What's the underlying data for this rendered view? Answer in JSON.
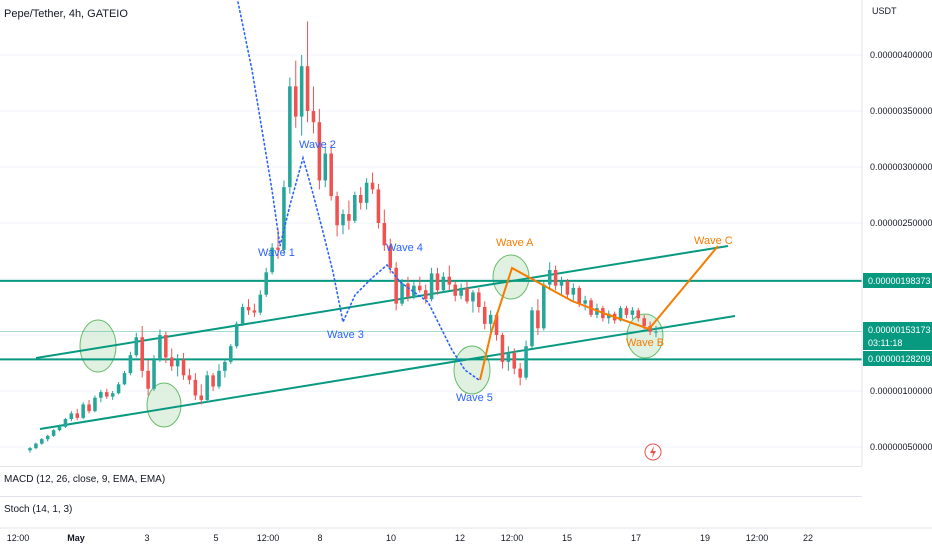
{
  "header": {
    "title": "Pepe/Tether, 4h, GATEIO"
  },
  "indicators": {
    "macd": "MACD (12, 26, close, 9, EMA, EMA)",
    "stoch": "Stoch (14, 1, 3)"
  },
  "price_axis": {
    "currency": "USDT",
    "tag_resistance": "0.00000198373",
    "tag_price": "0.00000153173",
    "tag_countdown": "03:11:18",
    "tag_support": "0.00000128209"
  },
  "colors": {
    "up": "#26a69a",
    "down": "#ef5350",
    "level": "#089981",
    "elliott": "#2962ff",
    "abc": "#f57c00",
    "circle_fill": "#c8e6c9",
    "circle_stroke": "#66bb6a"
  },
  "wave_labels": {
    "w1": "Wave 1",
    "w2": "Wave 2",
    "w3": "Wave 3",
    "w4": "Wave 4",
    "w5": "Wave 5",
    "wa": "Wave A",
    "wb": "Wave B",
    "wc": "Wave C"
  },
  "chart_data": {
    "type": "candlestick",
    "title": "Pepe/Tether, 4h, GATEIO",
    "y_unit": "USDT",
    "ylim": [
      1.4e-07,
      4.35e-06
    ],
    "y_ticks": [
      "0.00000400000",
      "0.00000350000",
      "0.00000300000",
      "0.00000250000",
      "0.00000200000",
      "0.00000150000",
      "0.00000100000",
      "0.00000050000"
    ],
    "x_ticks": [
      "12:00",
      "May",
      "3",
      "5",
      "12:00",
      "8",
      "10",
      "12",
      "12:00",
      "15",
      "17",
      "19",
      "12:00",
      "22"
    ],
    "horizontal_levels": [
      1.98373e-06,
      1.28209e-06
    ],
    "last_price": 1.53173e-06,
    "candles": [
      [
        4.7e-07,
        5e-07,
        4.5e-07,
        4.9e-07
      ],
      [
        4.9e-07,
        5.4e-07,
        4.8e-07,
        5.3e-07
      ],
      [
        5.3e-07,
        5.8e-07,
        5.2e-07,
        5.7e-07
      ],
      [
        5.7e-07,
        6.1e-07,
        5.5e-07,
        6e-07
      ],
      [
        6e-07,
        6.6e-07,
        5.9e-07,
        6.5e-07
      ],
      [
        6.5e-07,
        7e-07,
        6.4e-07,
        6.8e-07
      ],
      [
        6.8e-07,
        7.6e-07,
        6.7e-07,
        7.5e-07
      ],
      [
        7.5e-07,
        8.2e-07,
        7.3e-07,
        8e-07
      ],
      [
        8e-07,
        8.4e-07,
        7.4e-07,
        7.6e-07
      ],
      [
        7.6e-07,
        9e-07,
        7.5e-07,
        8.8e-07
      ],
      [
        8.8e-07,
        9.2e-07,
        8e-07,
        8.2e-07
      ],
      [
        8.2e-07,
        9.6e-07,
        8.1e-07,
        9.4e-07
      ],
      [
        9.4e-07,
        1.01e-06,
        9e-07,
        9.9e-07
      ],
      [
        9.9e-07,
        1.02e-06,
        9.3e-07,
        9.5e-07
      ],
      [
        9.5e-07,
        1e-06,
        9.2e-07,
        9.8e-07
      ],
      [
        9.8e-07,
        1.08e-06,
        9.7e-07,
        1.06e-06
      ],
      [
        1.06e-06,
        1.18e-06,
        1.05e-06,
        1.16e-06
      ],
      [
        1.16e-06,
        1.35e-06,
        1.14e-06,
        1.32e-06
      ],
      [
        1.32e-06,
        1.52e-06,
        1.3e-06,
        1.48e-06
      ],
      [
        1.48e-06,
        1.58e-06,
        1.12e-06,
        1.18e-06
      ],
      [
        1.18e-06,
        1.28e-06,
        9.6e-07,
        1.02e-06
      ],
      [
        1.02e-06,
        1.32e-06,
        1e-06,
        1.28e-06
      ],
      [
        1.28e-06,
        1.55e-06,
        1.26e-06,
        1.5e-06
      ],
      [
        1.5e-06,
        1.53e-06,
        1.25e-06,
        1.3e-06
      ],
      [
        1.3e-06,
        1.38e-06,
        1.18e-06,
        1.22e-06
      ],
      [
        1.22e-06,
        1.33e-06,
        1.13e-06,
        1.28e-06
      ],
      [
        1.28e-06,
        1.34e-06,
        1.1e-06,
        1.14e-06
      ],
      [
        1.14e-06,
        1.2e-06,
        1.06e-06,
        1.1e-06
      ],
      [
        1.1e-06,
        1.16e-06,
        9.2e-07,
        9.6e-07
      ],
      [
        9.6e-07,
        1.06e-06,
        8.8e-07,
        9.2e-07
      ],
      [
        9.2e-07,
        1.18e-06,
        9e-07,
        1.14e-06
      ],
      [
        1.14e-06,
        1.16e-06,
        1e-06,
        1.04e-06
      ],
      [
        1.04e-06,
        1.24e-06,
        1.02e-06,
        1.18e-06
      ],
      [
        1.18e-06,
        1.28e-06,
        1.12e-06,
        1.26e-06
      ],
      [
        1.26e-06,
        1.42e-06,
        1.24e-06,
        1.4e-06
      ],
      [
        1.4e-06,
        1.62e-06,
        1.38e-06,
        1.6e-06
      ],
      [
        1.6e-06,
        1.78e-06,
        1.58e-06,
        1.75e-06
      ],
      [
        1.75e-06,
        1.82e-06,
        1.68e-06,
        1.72e-06
      ],
      [
        1.72e-06,
        1.78e-06,
        1.66e-06,
        1.7e-06
      ],
      [
        1.7e-06,
        1.9e-06,
        1.68e-06,
        1.86e-06
      ],
      [
        1.86e-06,
        2.1e-06,
        1.84e-06,
        2.06e-06
      ],
      [
        2.06e-06,
        2.32e-06,
        2.04e-06,
        2.28e-06
      ],
      [
        2.28e-06,
        2.45e-06,
        2.18e-06,
        2.26e-06
      ],
      [
        2.26e-06,
        2.88e-06,
        2.22e-06,
        2.82e-06
      ],
      [
        2.82e-06,
        3.8e-06,
        2.76e-06,
        3.72e-06
      ],
      [
        3.72e-06,
        3.95e-06,
        3.35e-06,
        3.45e-06
      ],
      [
        3.45e-06,
        4e-06,
        3.28e-06,
        3.9e-06
      ],
      [
        3.9e-06,
        4.3e-06,
        3.4e-06,
        3.5e-06
      ],
      [
        3.5e-06,
        3.72e-06,
        3.3e-06,
        3.4e-06
      ],
      [
        3.4e-06,
        3.52e-06,
        2.8e-06,
        2.88e-06
      ],
      [
        2.88e-06,
        3.18e-06,
        2.82e-06,
        3.12e-06
      ],
      [
        3.12e-06,
        3.2e-06,
        2.7e-06,
        2.74e-06
      ],
      [
        2.74e-06,
        2.78e-06,
        2.38e-06,
        2.48e-06
      ],
      [
        2.48e-06,
        2.62e-06,
        2.4e-06,
        2.58e-06
      ],
      [
        2.58e-06,
        2.7e-06,
        2.44e-06,
        2.52e-06
      ],
      [
        2.52e-06,
        2.78e-06,
        2.5e-06,
        2.75e-06
      ],
      [
        2.75e-06,
        2.82e-06,
        2.62e-06,
        2.68e-06
      ],
      [
        2.68e-06,
        2.9e-06,
        2.62e-06,
        2.86e-06
      ],
      [
        2.86e-06,
        2.95e-06,
        2.76e-06,
        2.8e-06
      ],
      [
        2.8e-06,
        2.85e-06,
        2.45e-06,
        2.5e-06
      ],
      [
        2.5e-06,
        2.62e-06,
        2.25e-06,
        2.3e-06
      ],
      [
        2.3e-06,
        2.36e-06,
        2.05e-06,
        2.1e-06
      ],
      [
        2.1e-06,
        2.15e-06,
        1.72e-06,
        1.78e-06
      ],
      [
        1.78e-06,
        2e-06,
        1.76e-06,
        1.96e-06
      ],
      [
        1.96e-06,
        2.02e-06,
        1.8e-06,
        1.84e-06
      ],
      [
        1.84e-06,
        1.98e-06,
        1.82e-06,
        1.94e-06
      ],
      [
        1.94e-06,
        2.02e-06,
        1.88e-06,
        1.9e-06
      ],
      [
        1.9e-06,
        1.95e-06,
        1.78e-06,
        1.82e-06
      ],
      [
        1.82e-06,
        2.1e-06,
        1.8e-06,
        2.05e-06
      ],
      [
        2.05e-06,
        2.1e-06,
        1.86e-06,
        1.9e-06
      ],
      [
        1.9e-06,
        2.06e-06,
        1.88e-06,
        2.02e-06
      ],
      [
        2.02e-06,
        2.12e-06,
        1.9e-06,
        1.95e-06
      ],
      [
        1.95e-06,
        1.98e-06,
        1.8e-06,
        1.85e-06
      ],
      [
        1.85e-06,
        1.96e-06,
        1.82e-06,
        1.92e-06
      ],
      [
        1.92e-06,
        1.98e-06,
        1.78e-06,
        1.8e-06
      ],
      [
        1.8e-06,
        1.9e-06,
        1.7e-06,
        1.88e-06
      ],
      [
        1.88e-06,
        1.92e-06,
        1.7e-06,
        1.75e-06
      ],
      [
        1.75e-06,
        1.8e-06,
        1.55e-06,
        1.6e-06
      ],
      [
        1.6e-06,
        1.72e-06,
        1.52e-06,
        1.68e-06
      ],
      [
        1.68e-06,
        1.7e-06,
        1.45e-06,
        1.5e-06
      ],
      [
        1.5e-06,
        1.52e-06,
        1.2e-06,
        1.26e-06
      ],
      [
        1.26e-06,
        1.4e-06,
        1.18e-06,
        1.34e-06
      ],
      [
        1.34e-06,
        1.38e-06,
        1.15e-06,
        1.2e-06
      ],
      [
        1.2e-06,
        1.25e-06,
        1.05e-06,
        1.12e-06
      ],
      [
        1.12e-06,
        1.45e-06,
        1.1e-06,
        1.4e-06
      ],
      [
        1.4e-06,
        1.75e-06,
        1.38e-06,
        1.72e-06
      ],
      [
        1.72e-06,
        1.82e-06,
        1.5e-06,
        1.56e-06
      ],
      [
        1.56e-06,
        1.98e-06,
        1.54e-06,
        1.95e-06
      ],
      [
        1.95e-06,
        2.15e-06,
        1.9e-06,
        2.08e-06
      ],
      [
        2.08e-06,
        2.12e-06,
        1.9e-06,
        1.94e-06
      ],
      [
        1.94e-06,
        2.02e-06,
        1.86e-06,
        1.98e-06
      ],
      [
        1.98e-06,
        2e-06,
        1.82e-06,
        1.86e-06
      ],
      [
        1.86e-06,
        1.96e-06,
        1.8e-06,
        1.92e-06
      ],
      [
        1.92e-06,
        1.94e-06,
        1.75e-06,
        1.78e-06
      ],
      [
        1.78e-06,
        1.85e-06,
        1.72e-06,
        1.81e-06
      ],
      [
        1.81e-06,
        1.83e-06,
        1.66e-06,
        1.68e-06
      ],
      [
        1.68e-06,
        1.78e-06,
        1.65e-06,
        1.74e-06
      ],
      [
        1.74e-06,
        1.76e-06,
        1.62e-06,
        1.65e-06
      ],
      [
        1.65e-06,
        1.72e-06,
        1.6e-06,
        1.69e-06
      ],
      [
        1.69e-06,
        1.71e-06,
        1.6e-06,
        1.63e-06
      ],
      [
        1.63e-06,
        1.76e-06,
        1.62e-06,
        1.74e-06
      ],
      [
        1.74e-06,
        1.76e-06,
        1.65e-06,
        1.68e-06
      ],
      [
        1.68e-06,
        1.75e-06,
        1.64e-06,
        1.72e-06
      ],
      [
        1.72e-06,
        1.74e-06,
        1.62e-06,
        1.65e-06
      ],
      [
        1.65e-06,
        1.68e-06,
        1.55e-06,
        1.58e-06
      ],
      [
        1.58e-06,
        1.62e-06,
        1.5e-06,
        1.53e-06
      ],
      [
        1.53e-06,
        1.58e-06,
        1.48e-06,
        1.53e-06
      ]
    ]
  }
}
